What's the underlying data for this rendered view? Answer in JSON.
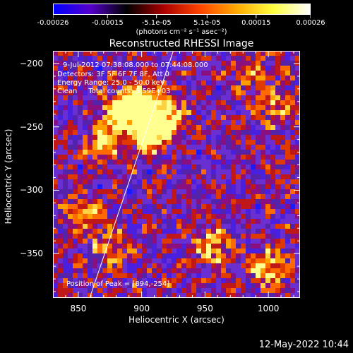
{
  "colorbar": {
    "tick_labels": [
      "-0.00026",
      "-0.00015",
      "-5.1e-05",
      "5.1e-05",
      "0.00015",
      "0.00026"
    ],
    "tick_values": [
      -0.00026,
      -0.00015,
      -5.1e-05,
      5.1e-05,
      0.00015,
      0.00026
    ],
    "units": "(photons cm⁻² s⁻¹ asec⁻²)",
    "colormap": [
      "#0000ff",
      "#5500cc",
      "#000000",
      "#aa0000",
      "#ff4400",
      "#ffaa00",
      "#ffff40",
      "#ffffff"
    ]
  },
  "chart_data": {
    "type": "heatmap",
    "title": "Reconstructed RHESSI Image",
    "xlabel": "Heliocentric X (arcsec)",
    "ylabel": "Heliocentric Y (arcsec)",
    "xlim": [
      830,
      1025
    ],
    "ylim": [
      -385,
      -190
    ],
    "x_ticks": [
      850,
      900,
      950,
      1000
    ],
    "y_ticks": [
      -200,
      -250,
      -300,
      -350
    ],
    "x_tick_labels": [
      "850",
      "900",
      "950",
      "1000"
    ],
    "y_tick_labels": [
      "−200",
      "−250",
      "−300",
      "−350"
    ],
    "limb_line": {
      "x": [
        859,
        925
      ],
      "y": [
        -385,
        -190
      ]
    },
    "peak": {
      "x": 894,
      "y": -254
    },
    "bright_sources": [
      {
        "x": 907,
        "y": -254,
        "intensity": 1.0
      },
      {
        "x": 897,
        "y": -232,
        "intensity": 0.85
      },
      {
        "x": 882,
        "y": -238,
        "intensity": 0.6
      },
      {
        "x": 870,
        "y": -262,
        "intensity": 0.55
      },
      {
        "x": 918,
        "y": -240,
        "intensity": 0.65
      },
      {
        "x": 955,
        "y": -345,
        "intensity": 0.5
      },
      {
        "x": 1000,
        "y": -362,
        "intensity": 0.6
      },
      {
        "x": 1005,
        "y": -235,
        "intensity": 0.45
      },
      {
        "x": 855,
        "y": -320,
        "intensity": 0.45
      },
      {
        "x": 875,
        "y": -345,
        "intensity": 0.4
      },
      {
        "x": 985,
        "y": -205,
        "intensity": 0.35
      }
    ],
    "annotations": {
      "time_range": "9-Jul-2012 07:38:08.000 to 07:44:08.000",
      "detectors": "Detectors: 3F 5F 6F 7F 8F, Att 0",
      "energy": "Energy Range: 25.0 - 50.0 keV",
      "method": "Clean     Total counts: 5.59E+03",
      "peak_text": "Position of Peak = [894,-254]"
    }
  },
  "timestamp": "12-May-2022 10:44"
}
